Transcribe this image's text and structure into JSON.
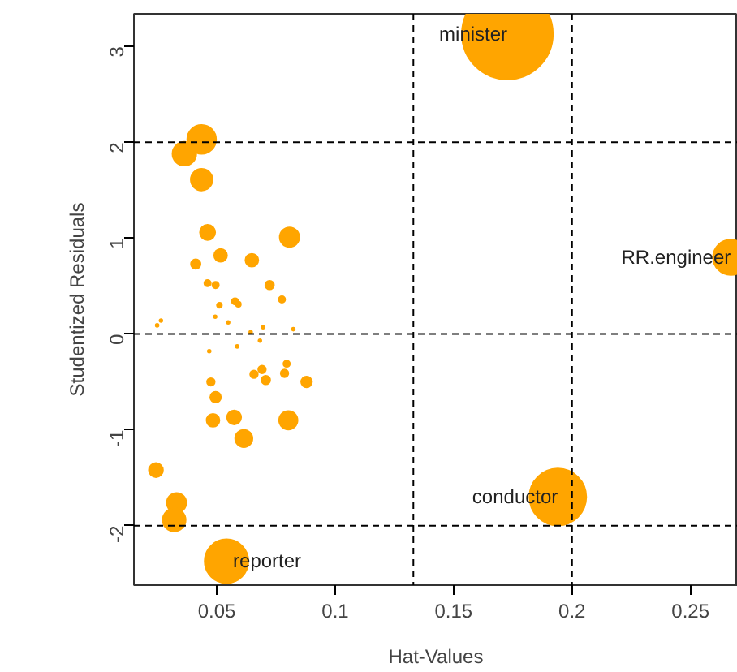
{
  "chart_data": {
    "type": "bubble",
    "xlabel": "Hat-Values",
    "ylabel": "Studentized Residuals",
    "xlim": [
      0.015,
      0.27
    ],
    "ylim": [
      -2.62,
      3.34
    ],
    "xticks": [
      0.05,
      0.1,
      0.15,
      0.2,
      0.25
    ],
    "yticks": [
      -2,
      -1,
      0,
      1,
      2,
      3
    ],
    "grid": false,
    "series": [
      {
        "color": "#ffa500",
        "x": [
          0.0436,
          0.0363,
          0.0436,
          0.0461,
          0.0807,
          0.0411,
          0.0516,
          0.0648,
          0.0461,
          0.0495,
          0.0723,
          0.0577,
          0.0591,
          0.0775,
          0.0511,
          0.0264,
          0.0248,
          0.0493,
          0.0548,
          0.0695,
          0.0823,
          0.0643,
          0.0586,
          0.0682,
          0.0468,
          0.0795,
          0.0691,
          0.0657,
          0.0786,
          0.0707,
          0.0475,
          0.0879,
          0.0495,
          0.0484,
          0.0573,
          0.0802,
          0.0614,
          0.0243,
          0.033,
          0.032,
          0.0541,
          0.1727,
          0.194,
          0.267
        ],
        "values": [
          2.03,
          1.88,
          1.61,
          1.06,
          1.01,
          0.73,
          0.82,
          0.77,
          0.53,
          0.51,
          0.51,
          0.34,
          0.31,
          0.36,
          0.3,
          0.14,
          0.09,
          0.18,
          0.12,
          0.07,
          0.05,
          0.02,
          -0.13,
          -0.07,
          -0.18,
          -0.31,
          -0.37,
          -0.42,
          -0.41,
          -0.48,
          -0.5,
          -0.5,
          -0.66,
          -0.9,
          -0.87,
          -0.9,
          -1.09,
          -1.42,
          -1.76,
          -1.94,
          -2.37,
          3.13,
          -1.7,
          0.8
        ],
        "sizes": [
          0.1,
          0.068,
          0.057,
          0.028,
          0.046,
          0.011,
          0.02,
          0.02,
          0.005,
          0.005,
          0.009,
          0.005,
          0.003,
          0.005,
          0.003,
          0.001,
          0.001,
          0.001,
          0.001,
          0.001,
          0.001,
          0.001,
          0.001,
          0.001,
          0.001,
          0.005,
          0.007,
          0.007,
          0.007,
          0.009,
          0.007,
          0.014,
          0.014,
          0.02,
          0.024,
          0.041,
          0.036,
          0.024,
          0.046,
          0.063,
          0.23,
          1,
          0.39,
          0.15
        ]
      }
    ],
    "ref_lines": [
      {
        "axis": "x",
        "value": 0.133,
        "color": "#000000",
        "line_style": "dashed"
      },
      {
        "axis": "x",
        "value": 0.2,
        "color": "#000000",
        "line_style": "dashed"
      },
      {
        "axis": "y",
        "value": -2,
        "color": "#000000",
        "line_style": "dashed"
      },
      {
        "axis": "y",
        "value": 0,
        "color": "#000000",
        "line_style": "dashed"
      },
      {
        "axis": "y",
        "value": 2,
        "color": "#000000",
        "line_style": "dashed"
      }
    ],
    "annotations": [
      {
        "text": "minister",
        "x": 0.1727,
        "y": 3.13
      },
      {
        "text": "RR.engineer",
        "x": 0.267,
        "y": 0.8
      },
      {
        "text": "conductor",
        "x": 0.194,
        "y": -1.7
      },
      {
        "text": "reporter",
        "x": 0.0541,
        "y": -2.37
      }
    ]
  }
}
